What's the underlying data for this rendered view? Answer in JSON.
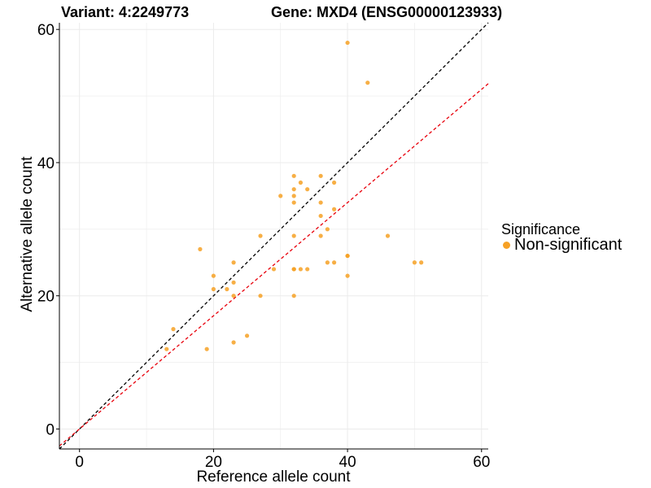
{
  "title": {
    "variant": "Variant: 4:2249773",
    "gene": "Gene: MXD4 (ENSG00000123933)"
  },
  "legend": {
    "title": "Significance",
    "items": [
      {
        "label": "Non-significant",
        "color": "#f6a125"
      }
    ]
  },
  "colors": {
    "point": "#f6a125",
    "diagonal": "#000000",
    "fit_line": "#e8000b",
    "grid": "#ebebeb"
  },
  "chart_data": {
    "type": "scatter",
    "xlabel": "Reference allele count",
    "ylabel": "Alternative allele count",
    "xlim": [
      -3,
      61
    ],
    "ylim": [
      -3,
      61
    ],
    "x_ticks": [
      0,
      20,
      40,
      60
    ],
    "y_ticks": [
      0,
      20,
      40,
      60
    ],
    "grid": true,
    "legend_position": "right",
    "reference_lines": [
      {
        "name": "y = x",
        "style": "dashed",
        "color": "#000000",
        "slope": 1,
        "intercept": 0
      },
      {
        "name": "fit",
        "style": "dashed",
        "color": "#e8000b",
        "slope": 0.85,
        "intercept": 0
      }
    ],
    "series": [
      {
        "name": "Non-significant",
        "color": "#f6a125",
        "x": [
          40,
          43,
          32,
          36,
          33,
          32,
          34,
          32,
          30,
          32,
          38,
          36,
          38,
          36,
          37,
          32,
          36,
          27,
          46,
          18,
          32,
          40,
          40,
          37,
          38,
          50,
          51,
          23,
          29,
          32,
          33,
          34,
          20,
          40,
          23,
          20,
          22,
          23,
          27,
          32,
          14,
          25,
          23,
          13,
          19
        ],
        "y": [
          58,
          52,
          38,
          38,
          37,
          36,
          36,
          35,
          35,
          34,
          37,
          34,
          33,
          32,
          30,
          29,
          29,
          29,
          29,
          27,
          24,
          26,
          26,
          25,
          25,
          25,
          25,
          25,
          24,
          24,
          24,
          24,
          23,
          23,
          22,
          21,
          21,
          20,
          20,
          20,
          15,
          14,
          13,
          12,
          12
        ]
      }
    ]
  }
}
